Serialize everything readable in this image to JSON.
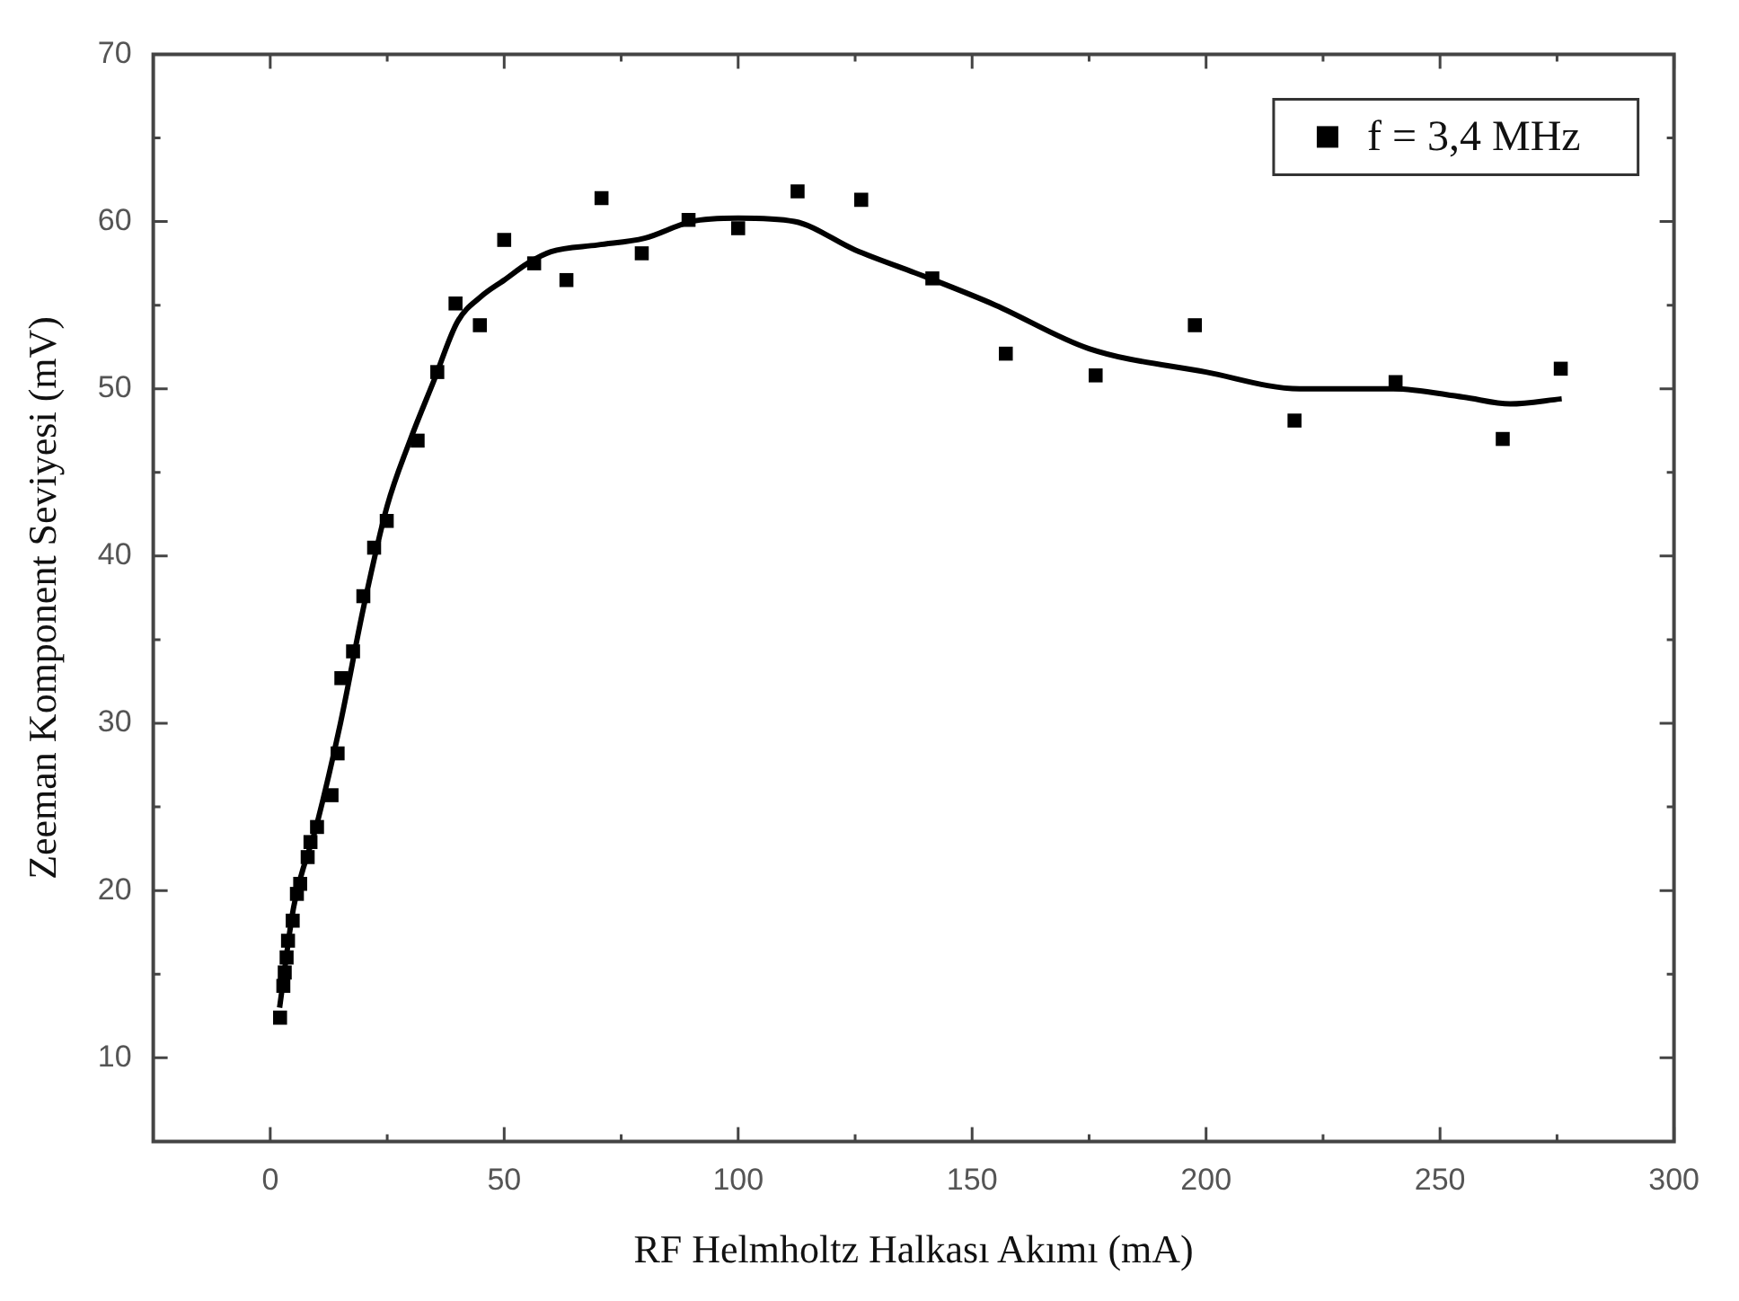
{
  "chart_data": {
    "type": "scatter",
    "xlabel": "RF Helmholtz Halkası Akımı (mA)",
    "ylabel": "Zeeman Komponent Seviyesi (mV)",
    "xlim": [
      -25,
      300
    ],
    "ylim": [
      5,
      70
    ],
    "xticks": [
      0,
      {
        "value": 25,
        "label": null
      },
      50,
      {
        "value": 75,
        "label": null
      },
      100,
      {
        "value": 125,
        "label": null
      },
      150,
      {
        "value": 175,
        "label": null
      },
      200,
      {
        "value": 225,
        "label": null
      },
      250,
      {
        "value": 275,
        "label": null
      },
      300
    ],
    "yticks": [
      10,
      {
        "value": 15,
        "label": null
      },
      20,
      {
        "value": 25,
        "label": null
      },
      30,
      {
        "value": 35,
        "label": null
      },
      40,
      {
        "value": 45,
        "label": null
      },
      50,
      {
        "value": 55,
        "label": null
      },
      60,
      {
        "value": 65,
        "label": null
      },
      70
    ],
    "grid": false,
    "legend": "top right",
    "series": [
      {
        "name": "f = 3,4 MHz",
        "type": "scatter",
        "marker": "square",
        "color": "#000000",
        "x": [
          2.1,
          2.8,
          3.1,
          3.5,
          3.8,
          4.8,
          5.7,
          6.4,
          8,
          8.6,
          10,
          13.1,
          14.4,
          15.2,
          17.7,
          19.9,
          22.2,
          24.9,
          31.5,
          35.7,
          39.6,
          44.8,
          50,
          56.4,
          63.3,
          70.8,
          79.4,
          89.4,
          100,
          112.7,
          126.3,
          141.5,
          157.2,
          176.4,
          197.6,
          218.9,
          240.5,
          263.4,
          275.8
        ],
        "values": [
          12.4,
          14.3,
          15.1,
          16,
          17,
          18.2,
          19.8,
          20.4,
          22,
          22.9,
          23.8,
          25.7,
          28.2,
          32.7,
          34.3,
          37.6,
          40.5,
          42.1,
          46.9,
          51,
          55.1,
          53.8,
          58.9,
          57.5,
          56.5,
          61.4,
          58.1,
          60.1,
          59.6,
          61.8,
          61.3,
          56.6,
          52.1,
          50.8,
          53.8,
          48.1,
          50.4,
          47,
          51.2
        ]
      },
      {
        "type": "line",
        "marker": "none",
        "line_style": "solid",
        "color": "#000000",
        "x": [
          2,
          5,
          10,
          15,
          20,
          25,
          30,
          35,
          40,
          45,
          50,
          55,
          60,
          70,
          80,
          90,
          100,
          112,
          125,
          140,
          155,
          175,
          200,
          220,
          240,
          255,
          265,
          276
        ],
        "values": [
          13,
          19,
          24,
          30,
          37,
          43,
          47,
          50.5,
          54,
          55.5,
          56.5,
          57.5,
          58.2,
          58.6,
          59,
          60,
          60.2,
          60,
          58.3,
          56.7,
          55,
          52.4,
          51,
          50,
          50,
          49.5,
          49.1,
          49.4
        ]
      }
    ]
  }
}
